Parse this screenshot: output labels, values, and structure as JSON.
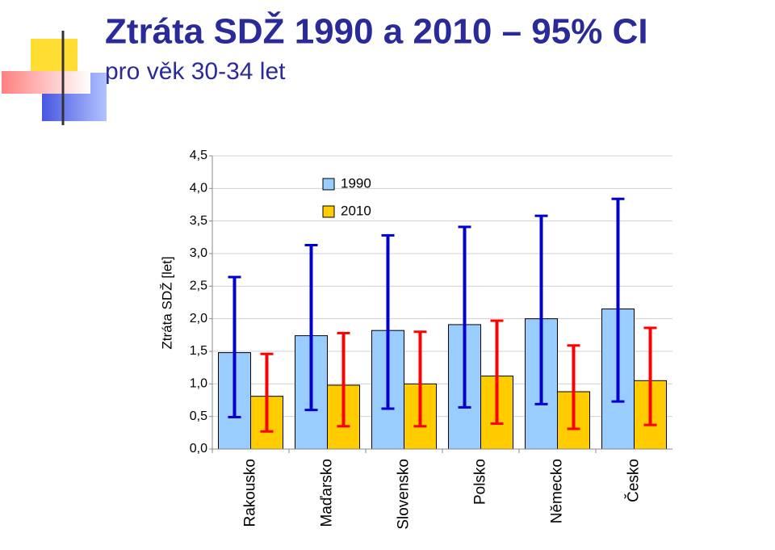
{
  "chart_data": {
    "type": "bar",
    "title": "Ztráta SDŽ 1990 a 2010 – 95% CI",
    "subtitle": "pro věk 30-34 let",
    "y_label": "Ztráta SDŽ [let]",
    "categories": [
      "Rakousko",
      "Maďarsko",
      "Slovensko",
      "Polsko",
      "Německo",
      "Česko"
    ],
    "series": [
      {
        "name": "1990",
        "color": "#99ccff",
        "error_color": "#0000cc",
        "values": [
          1.48,
          1.74,
          1.82,
          1.91,
          2.0,
          2.15
        ],
        "lower": [
          0.49,
          0.6,
          0.62,
          0.64,
          0.69,
          0.73
        ],
        "upper": [
          2.64,
          3.13,
          3.28,
          3.41,
          3.58,
          3.84
        ]
      },
      {
        "name": "2010",
        "color": "#ffcc00",
        "error_color": "#ff0000",
        "values": [
          0.81,
          0.98,
          1.0,
          1.12,
          0.88,
          1.05
        ],
        "lower": [
          0.27,
          0.35,
          0.35,
          0.39,
          0.31,
          0.37
        ],
        "upper": [
          1.46,
          1.78,
          1.8,
          1.97,
          1.59,
          1.86
        ]
      }
    ],
    "ylim": [
      0,
      4.5
    ],
    "yticks": [
      {
        "value": 0,
        "label": "0,0"
      },
      {
        "value": 0.5,
        "label": "0,5"
      },
      {
        "value": 1,
        "label": "1,0"
      },
      {
        "value": 1.5,
        "label": "1,5"
      },
      {
        "value": 2,
        "label": "2,0"
      },
      {
        "value": 2.5,
        "label": "2,5"
      },
      {
        "value": 3,
        "label": "3,0"
      },
      {
        "value": 3.5,
        "label": "3,5"
      },
      {
        "value": 4,
        "label": "4,0"
      },
      {
        "value": 4.5,
        "label": "4,5"
      }
    ],
    "grid": true,
    "legend": "upper-left"
  }
}
